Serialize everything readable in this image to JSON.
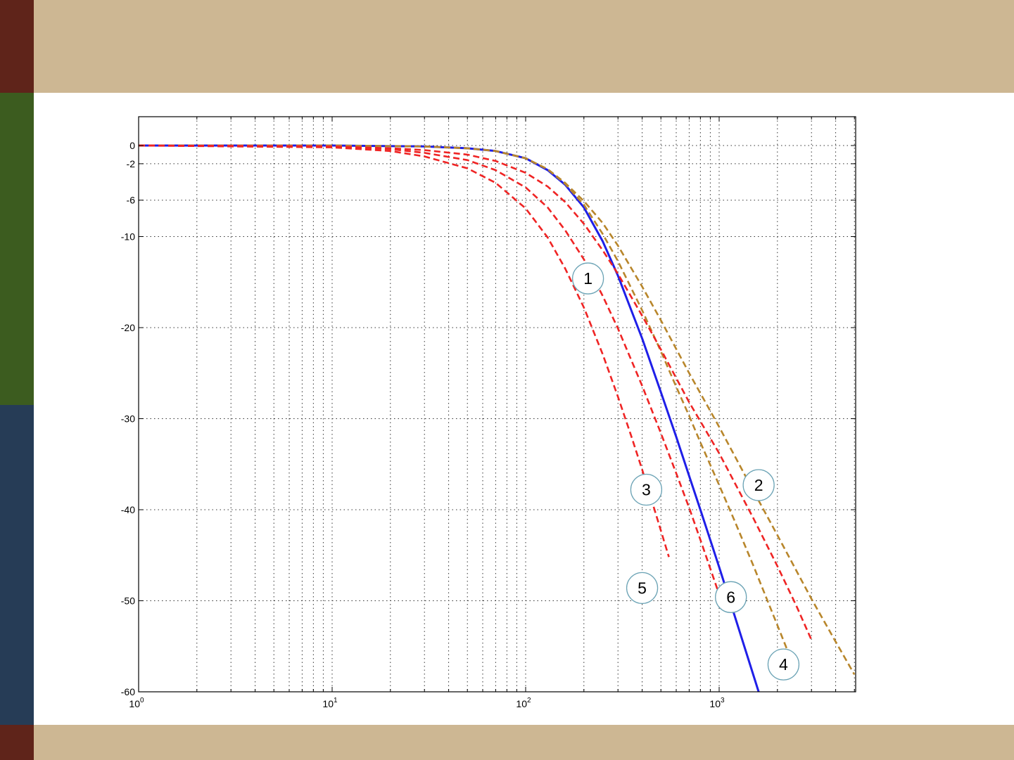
{
  "theme": {
    "bar_color": "#cdb793",
    "strip_colors": [
      "#5f241a",
      "#3c5c1f",
      "#263c56",
      "#5f241a"
    ],
    "grid_color": "#333333",
    "marker_stroke": "#6ba3b5"
  },
  "chart_data": {
    "type": "line",
    "title": "",
    "xlabel": "",
    "ylabel": "",
    "xscale": "log",
    "xlim": [
      1,
      5000
    ],
    "ylim": [
      -60,
      3
    ],
    "grid": true,
    "y_ticks": [
      0,
      -2,
      -6,
      -10,
      -20,
      -30,
      -40,
      -50,
      -60
    ],
    "y_tick_labels": [
      "0",
      "-2",
      "-6",
      "-10",
      "-20",
      "-30",
      "-40",
      "-50",
      "-60"
    ],
    "x_ticks": [
      {
        "value": 1,
        "base": "10",
        "exp": "0"
      },
      {
        "value": 10,
        "base": "10",
        "exp": "1"
      },
      {
        "value": 100,
        "base": "10",
        "exp": "2"
      },
      {
        "value": 1000,
        "base": "10",
        "exp": "3"
      }
    ],
    "series": [
      {
        "style": "solid",
        "color": "#1f1fe8",
        "x": [
          1,
          10,
          30,
          50,
          70,
          100,
          130,
          160,
          200,
          250,
          300,
          400,
          500,
          600,
          700,
          800,
          1000,
          1200,
          1400,
          1600
        ],
        "y": [
          0,
          0,
          -0.1,
          -0.3,
          -0.6,
          -1.4,
          -2.7,
          -4.3,
          -6.8,
          -10.5,
          -14.3,
          -21.2,
          -27.1,
          -32.0,
          -36.3,
          -40.0,
          -46.3,
          -51.6,
          -56.1,
          -60.0
        ]
      },
      {
        "style": "dashed",
        "color": "#b8862b",
        "x": [
          1,
          10,
          30,
          50,
          70,
          100,
          130,
          160,
          200,
          250,
          300,
          400,
          500,
          700,
          1000,
          1500,
          2000,
          3000,
          4000,
          5000
        ],
        "y": [
          0,
          0,
          -0.1,
          -0.3,
          -0.6,
          -1.4,
          -2.6,
          -4.1,
          -6.1,
          -8.5,
          -11.0,
          -15.5,
          -19.2,
          -25.0,
          -30.9,
          -37.9,
          -42.8,
          -49.8,
          -54.5,
          -58.1
        ]
      },
      {
        "style": "dashed",
        "color": "#b8862b",
        "x": [
          1,
          10,
          30,
          50,
          70,
          100,
          130,
          160,
          200,
          250,
          300,
          400,
          500,
          600,
          700,
          800,
          1000,
          1200,
          1500,
          2000,
          2400
        ],
        "y": [
          0,
          0,
          -0.1,
          -0.3,
          -0.6,
          -1.4,
          -2.6,
          -4.2,
          -6.5,
          -9.7,
          -12.7,
          -18.1,
          -22.6,
          -26.5,
          -29.7,
          -32.6,
          -37.3,
          -41.2,
          -46.1,
          -52.7,
          -56.9
        ]
      },
      {
        "style": "dashed",
        "color": "#ef2424",
        "x": [
          1,
          10,
          20,
          30,
          50,
          70,
          100,
          130,
          160,
          200,
          250,
          300,
          400,
          500,
          700,
          1000,
          1500,
          2000,
          2500,
          3000
        ],
        "y": [
          0,
          -0.1,
          -0.3,
          -0.5,
          -1.0,
          -1.7,
          -3.0,
          -4.5,
          -6.2,
          -8.6,
          -11.5,
          -14.1,
          -18.7,
          -22.4,
          -28.2,
          -33.8,
          -40.9,
          -46.2,
          -50.5,
          -54.3
        ]
      },
      {
        "style": "dashed",
        "color": "#ef2424",
        "x": [
          1,
          10,
          20,
          30,
          50,
          70,
          100,
          130,
          160,
          200,
          250,
          300,
          400,
          500,
          600,
          700,
          800,
          1000
        ],
        "y": [
          0,
          -0.1,
          -0.4,
          -0.8,
          -1.6,
          -2.7,
          -4.6,
          -6.8,
          -9.3,
          -12.5,
          -16.5,
          -20.1,
          -26.4,
          -31.6,
          -36.0,
          -39.8,
          -43.3,
          -49.3
        ]
      },
      {
        "style": "dashed",
        "color": "#ef2424",
        "x": [
          1,
          10,
          20,
          30,
          50,
          70,
          100,
          130,
          160,
          200,
          250,
          300,
          350,
          400,
          450,
          500,
          550
        ],
        "y": [
          0,
          -0.2,
          -0.6,
          -1.2,
          -2.5,
          -4.1,
          -6.9,
          -10.1,
          -13.5,
          -17.8,
          -22.9,
          -27.6,
          -31.8,
          -35.6,
          -39.1,
          -42.3,
          -45.2
        ]
      }
    ],
    "markers": [
      {
        "label": "1",
        "x": 210,
        "y": -14.6
      },
      {
        "label": "2",
        "x": 1600,
        "y": -37.3
      },
      {
        "label": "3",
        "x": 420,
        "y": -37.8
      },
      {
        "label": "4",
        "x": 2150,
        "y": -57.0
      },
      {
        "label": "5",
        "x": 400,
        "y": -48.6
      },
      {
        "label": "6",
        "x": 1150,
        "y": -49.6
      }
    ]
  }
}
